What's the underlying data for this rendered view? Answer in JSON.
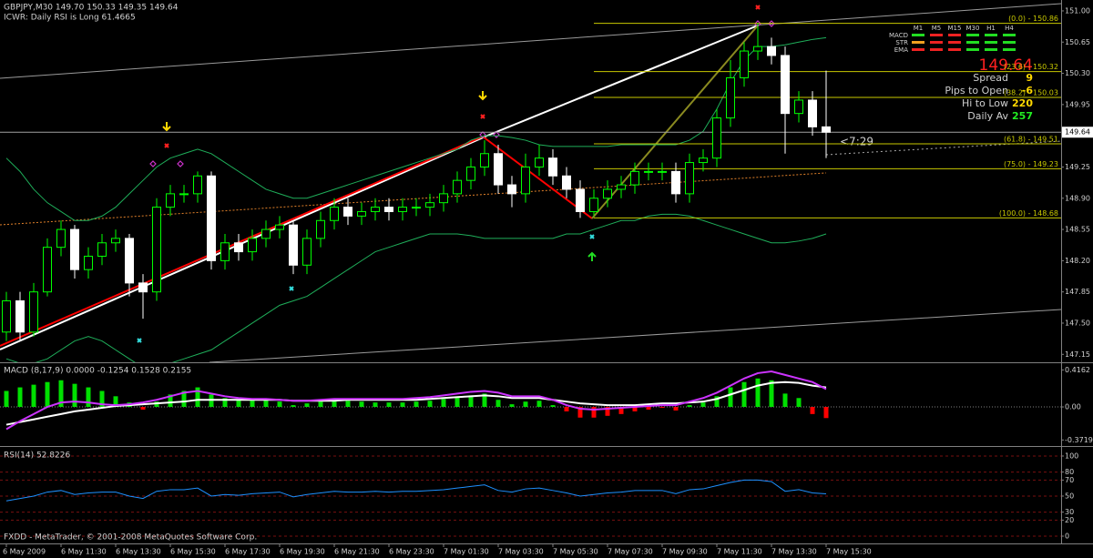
{
  "header": {
    "symbol_line": "GBPJPY,M30  149.70 150.33 149.35 149.64",
    "indicator_note": "ICWR: Daily RSI is Long 61.4665"
  },
  "info_panel": {
    "timeframes": [
      "M1",
      "M5",
      "M15",
      "M30",
      "H1",
      "H4"
    ],
    "rows": [
      "MACD",
      "STR",
      "EMA"
    ],
    "price": "149.64",
    "stats": [
      {
        "label": "Spread",
        "value": "9"
      },
      {
        "label": "Pips to Open",
        "value": "-6"
      },
      {
        "label": "Hi to Low",
        "value": "220"
      },
      {
        "label": "Daily Av",
        "value": "257"
      }
    ]
  },
  "countdown": "<7:29",
  "footer": "FXDD - MetaTrader, © 2001-2008 MetaQuotes Software Corp.",
  "chart_data": [
    {
      "type": "candlestick",
      "categories": [
        "6 May 2009",
        null,
        null,
        null,
        "6 May 11:30",
        null,
        null,
        null,
        "6 May 13:30",
        null,
        null,
        null,
        "6 May 15:30",
        null,
        null,
        null,
        "6 May 17:30",
        null,
        null,
        null,
        "6 May 19:30",
        null,
        null,
        null,
        "6 May 21:30",
        null,
        null,
        null,
        "6 May 23:30",
        null,
        null,
        null,
        "7 May 01:30",
        null,
        null,
        null,
        "7 May 03:30",
        null,
        null,
        null,
        "7 May 05:30",
        null,
        null,
        null,
        "7 May 07:30",
        null,
        null,
        null,
        "7 May 09:30",
        null,
        null,
        null,
        "7 May 11:30",
        null,
        null,
        null,
        "7 May 13:30",
        null,
        null,
        null,
        "7 May 15:30"
      ],
      "open": [
        147.4,
        147.75,
        147.4,
        147.85,
        148.35,
        148.55,
        148.1,
        148.25,
        148.4,
        148.45,
        147.95,
        147.85,
        148.8,
        148.95,
        148.95,
        149.15,
        148.2,
        148.4,
        148.3,
        148.45,
        148.55,
        148.6,
        148.15,
        148.45,
        148.65,
        148.8,
        148.7,
        148.75,
        148.8,
        148.75,
        148.8,
        148.8,
        148.85,
        148.95,
        149.1,
        149.25,
        149.4,
        149.05,
        148.95,
        149.25,
        149.35,
        149.15,
        149.0,
        148.75,
        148.9,
        149.0,
        149.05,
        149.2,
        149.2,
        149.2,
        148.95,
        149.3,
        149.35,
        149.8,
        150.25,
        150.55,
        150.6,
        150.5,
        149.85,
        150.0,
        149.7
      ],
      "high": [
        147.85,
        147.85,
        147.95,
        148.45,
        148.65,
        148.6,
        148.35,
        148.5,
        148.55,
        148.5,
        148.05,
        148.9,
        149.05,
        149.05,
        149.2,
        149.2,
        148.5,
        148.5,
        148.55,
        148.65,
        148.7,
        148.65,
        148.55,
        148.75,
        148.9,
        148.9,
        148.85,
        148.9,
        148.9,
        148.9,
        148.9,
        148.95,
        149.05,
        149.2,
        149.35,
        149.55,
        149.5,
        149.15,
        149.4,
        149.5,
        149.45,
        149.25,
        149.1,
        149.0,
        149.1,
        149.15,
        149.3,
        149.3,
        149.3,
        149.3,
        149.4,
        149.45,
        149.9,
        150.45,
        150.65,
        150.86,
        150.7,
        150.6,
        150.1,
        150.1,
        150.33
      ],
      "low": [
        147.3,
        147.3,
        147.35,
        147.8,
        148.25,
        148.0,
        148.0,
        148.15,
        148.3,
        147.8,
        147.55,
        147.75,
        148.7,
        148.85,
        148.85,
        148.1,
        148.1,
        148.2,
        148.2,
        148.35,
        148.45,
        148.05,
        148.05,
        148.35,
        148.55,
        148.6,
        148.6,
        148.65,
        148.65,
        148.65,
        148.7,
        148.7,
        148.75,
        148.85,
        149.0,
        149.15,
        148.95,
        148.8,
        148.85,
        149.15,
        149.05,
        148.9,
        148.68,
        148.7,
        148.8,
        148.9,
        148.95,
        149.1,
        149.1,
        148.85,
        148.85,
        149.2,
        149.25,
        149.7,
        150.15,
        150.45,
        150.4,
        149.4,
        149.75,
        149.6,
        149.35
      ],
      "close": [
        147.75,
        147.4,
        147.85,
        148.35,
        148.55,
        148.1,
        148.25,
        148.4,
        148.45,
        147.95,
        147.85,
        148.8,
        148.95,
        148.95,
        149.15,
        148.2,
        148.4,
        148.3,
        148.45,
        148.55,
        148.6,
        148.15,
        148.45,
        148.65,
        148.8,
        148.7,
        148.75,
        148.8,
        148.75,
        148.8,
        148.8,
        148.85,
        148.95,
        149.1,
        149.25,
        149.4,
        149.05,
        148.95,
        149.25,
        149.35,
        149.15,
        149.0,
        148.75,
        148.9,
        149.0,
        149.05,
        149.2,
        149.2,
        149.2,
        148.95,
        149.3,
        149.35,
        149.8,
        150.25,
        150.55,
        150.6,
        150.5,
        149.85,
        150.0,
        149.7,
        149.64
      ],
      "up_color": "#00ff00",
      "down_color": "#ffffff",
      "overlays": [
        {
          "color": "#1fae5a",
          "values": [
            149.35,
            149.2,
            149.0,
            148.85,
            148.75,
            148.65,
            148.65,
            148.7,
            148.8,
            148.95,
            149.1,
            149.25,
            149.35,
            149.4,
            149.45,
            149.4,
            149.3,
            149.2,
            149.1,
            149.0,
            148.95,
            148.9,
            148.9,
            148.95,
            149.0,
            149.05,
            149.1,
            149.15,
            149.2,
            149.25,
            149.3,
            149.35,
            149.4,
            149.45,
            149.55,
            149.6,
            149.6,
            149.58,
            149.55,
            149.5,
            149.48,
            149.48,
            149.48,
            149.48,
            149.48,
            149.5,
            149.5,
            149.5,
            149.5,
            149.5,
            149.55,
            149.65,
            149.9,
            150.2,
            150.45,
            150.6,
            150.6,
            150.62,
            150.65,
            150.68,
            150.7
          ]
        },
        {
          "color": "#1fae5a",
          "values": [
            147.1,
            147.05,
            147.05,
            147.1,
            147.2,
            147.3,
            147.35,
            147.3,
            147.2,
            147.1,
            147.0,
            147.0,
            147.05,
            147.1,
            147.15,
            147.2,
            147.3,
            147.4,
            147.5,
            147.6,
            147.7,
            147.75,
            147.8,
            147.9,
            148.0,
            148.1,
            148.2,
            148.3,
            148.35,
            148.4,
            148.45,
            148.5,
            148.5,
            148.5,
            148.48,
            148.45,
            148.45,
            148.45,
            148.45,
            148.45,
            148.45,
            148.5,
            148.5,
            148.55,
            148.6,
            148.65,
            148.65,
            148.7,
            148.72,
            148.72,
            148.7,
            148.65,
            148.6,
            148.55,
            148.5,
            148.45,
            148.4,
            148.4,
            148.42,
            148.45,
            148.5
          ]
        }
      ],
      "fibonacci": [
        {
          "value": 150.86,
          "label": "(0.0) - 150.86"
        },
        {
          "value": 150.32,
          "label": "(23.6) - 150.32"
        },
        {
          "value": 150.03,
          "label": "(38.2) - 150.03"
        },
        {
          "value": 149.51,
          "label": "(61.8) - 149.51"
        },
        {
          "value": 149.23,
          "label": "(75.0) - 149.23"
        },
        {
          "value": 148.68,
          "label": "(100.0) - 148.68"
        }
      ],
      "fib_color": "#c8c800",
      "current_price": 149.64,
      "ylim": [
        147.061,
        151.122
      ],
      "yticks": [
        147.15,
        {
          "value": 147.5,
          "label": "147.50"
        },
        147.85,
        {
          "value": 148.2,
          "label": "148.20"
        },
        148.55,
        {
          "value": 148.9,
          "label": "148.90"
        },
        149.25,
        149.95,
        {
          "value": 150.3,
          "label": "150.30"
        },
        150.65,
        {
          "value": 151,
          "label": "151.00"
        }
      ]
    },
    {
      "type": "bar",
      "title": "MACD (8,17,9) 0.0000 -0.1254 0.1528 0.2155",
      "values": [
        0.18,
        0.22,
        0.25,
        0.28,
        0.3,
        0.26,
        0.22,
        0.18,
        0.12,
        0.05,
        -0.03,
        0.06,
        0.14,
        0.18,
        0.22,
        0.14,
        0.1,
        0.08,
        0.09,
        0.08,
        0.06,
        0.02,
        0.04,
        0.06,
        0.08,
        0.07,
        0.06,
        0.05,
        0.05,
        0.05,
        0.06,
        0.07,
        0.09,
        0.11,
        0.13,
        0.15,
        0.08,
        0.03,
        0.06,
        0.07,
        0.02,
        -0.05,
        -0.12,
        -0.12,
        -0.1,
        -0.08,
        -0.05,
        -0.03,
        -0.01,
        -0.04,
        0.02,
        0.05,
        0.12,
        0.22,
        0.28,
        0.32,
        0.3,
        0.15,
        0.1,
        -0.08,
        -0.1254
      ],
      "positive_color": "#00e000",
      "negative_color": "#ff0000",
      "series": [
        {
          "color": "#ffffff",
          "values": [
            -0.2,
            -0.17,
            -0.14,
            -0.11,
            -0.08,
            -0.05,
            -0.03,
            -0.01,
            0.01,
            0.02,
            0.03,
            0.04,
            0.05,
            0.06,
            0.08,
            0.08,
            0.08,
            0.08,
            0.08,
            0.08,
            0.08,
            0.07,
            0.07,
            0.07,
            0.07,
            0.08,
            0.08,
            0.08,
            0.08,
            0.08,
            0.08,
            0.09,
            0.1,
            0.11,
            0.12,
            0.13,
            0.12,
            0.1,
            0.1,
            0.1,
            0.08,
            0.06,
            0.04,
            0.03,
            0.02,
            0.02,
            0.02,
            0.03,
            0.04,
            0.04,
            0.05,
            0.06,
            0.09,
            0.14,
            0.19,
            0.24,
            0.27,
            0.28,
            0.27,
            0.24,
            0.22
          ]
        },
        {
          "color": "#cc33ff",
          "values": [
            -0.25,
            -0.16,
            -0.08,
            0.0,
            0.05,
            0.06,
            0.05,
            0.03,
            0.02,
            0.03,
            0.05,
            0.08,
            0.12,
            0.16,
            0.18,
            0.15,
            0.12,
            0.1,
            0.09,
            0.09,
            0.08,
            0.07,
            0.07,
            0.08,
            0.09,
            0.09,
            0.09,
            0.09,
            0.09,
            0.09,
            0.1,
            0.11,
            0.13,
            0.15,
            0.17,
            0.18,
            0.16,
            0.12,
            0.12,
            0.12,
            0.08,
            0.02,
            -0.02,
            -0.03,
            -0.02,
            -0.01,
            0.0,
            0.01,
            0.02,
            0.02,
            0.06,
            0.1,
            0.16,
            0.24,
            0.32,
            0.38,
            0.4,
            0.36,
            0.32,
            0.28,
            0.2
          ]
        }
      ],
      "ylim": [
        -0.44,
        0.492
      ],
      "yticks": [
        -0.3719,
        {
          "value": 0,
          "label": "0.00"
        },
        0.4162
      ]
    },
    {
      "type": "line",
      "title": "RSI(14) 52.8226",
      "series": [
        {
          "color": "#1e90ff",
          "values": [
            44,
            47,
            50,
            55,
            57,
            52,
            54,
            55,
            55,
            50,
            47,
            56,
            58,
            58,
            60,
            50,
            52,
            51,
            53,
            54,
            55,
            49,
            52,
            54,
            56,
            55,
            55,
            56,
            55,
            56,
            56,
            57,
            58,
            60,
            62,
            64,
            57,
            55,
            59,
            60,
            57,
            54,
            50,
            52,
            54,
            55,
            57,
            57,
            57,
            53,
            58,
            59,
            63,
            67,
            70,
            70,
            68,
            56,
            58,
            54,
            52.8226
          ]
        }
      ],
      "ylim": [
        -9.1,
        110.2
      ],
      "yticks": [
        0,
        20,
        30,
        50,
        70,
        80,
        100
      ],
      "grid": true
    }
  ]
}
